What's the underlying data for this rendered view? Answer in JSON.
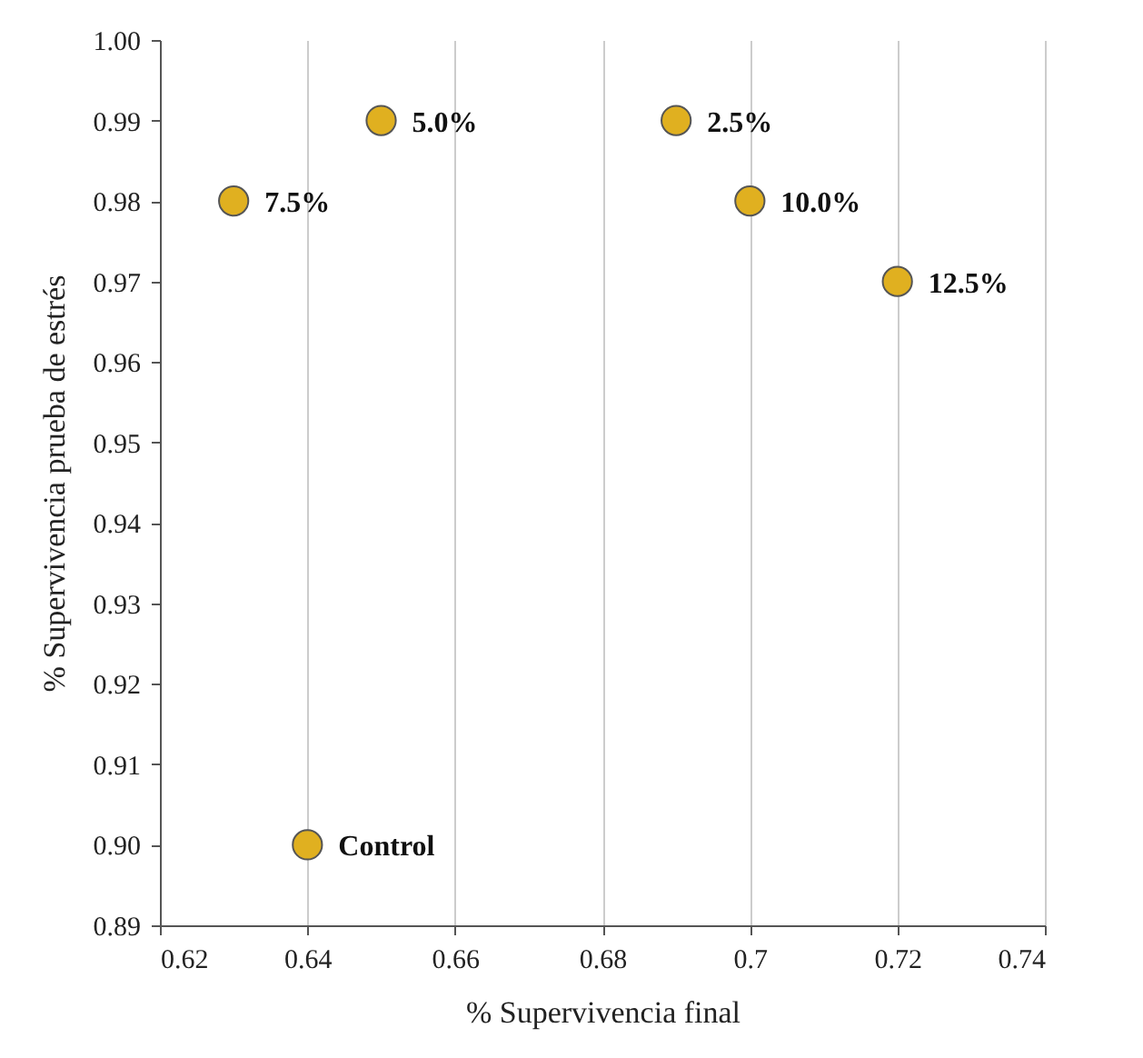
{
  "chart_data": {
    "type": "scatter",
    "xlabel": "% Supervivencia  final",
    "ylabel": "% Supervivencia  prueba de estrés",
    "x": [
      0.63,
      0.65,
      0.69,
      0.7,
      0.72,
      0.64
    ],
    "values": [
      0.98,
      0.99,
      0.99,
      0.98,
      0.97,
      0.9
    ],
    "color": "#e0b020",
    "marker": "circle",
    "grid": "x",
    "xlim": [
      0.62,
      0.74
    ],
    "xticks": [
      0.62,
      0.64,
      0.66,
      0.68,
      0.7,
      0.72,
      0.74
    ],
    "ylim": [
      0.89,
      1.0
    ],
    "yticks": [
      0.89,
      {
        "value": 0.9,
        "label": "0.90"
      },
      0.91,
      0.92,
      0.93,
      0.94,
      0.95,
      0.96,
      0.97,
      0.98,
      0.99,
      {
        "value": 1.0,
        "label": "1.00"
      }
    ],
    "annotations": [
      {
        "text": "7.5%",
        "x": 0.63,
        "y": 0.98
      },
      {
        "text": "5.0%",
        "x": 0.65,
        "y": 0.99
      },
      {
        "text": "2.5%",
        "x": 0.69,
        "y": 0.99
      },
      {
        "text": "10.0%",
        "x": 0.7,
        "y": 0.98
      },
      {
        "text": "12.5%",
        "x": 0.72,
        "y": 0.97
      },
      {
        "text": "Control",
        "x": 0.64,
        "y": 0.9
      }
    ]
  }
}
